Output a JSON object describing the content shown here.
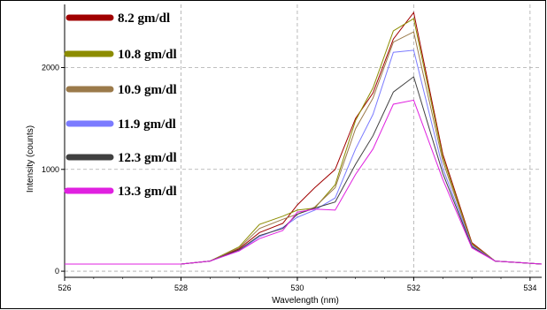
{
  "chart_data": {
    "type": "line",
    "xlabel": "Wavelength (nm)",
    "ylabel": "Intensity (counts)",
    "xlim": [
      526,
      534.2
    ],
    "ylim": [
      -60,
      2620
    ],
    "x_ticks": [
      526,
      528,
      530,
      532,
      534
    ],
    "y_ticks": [
      0,
      1000,
      2000
    ],
    "grid": true,
    "legend_position": "top-left",
    "x": [
      526,
      527,
      528,
      528.5,
      529,
      529.35,
      529.75,
      530,
      530.3,
      530.65,
      531,
      531.3,
      531.65,
      532,
      532.5,
      533,
      533.4,
      533.8,
      534.2
    ],
    "series": [
      {
        "name": "8.2 gm/dl",
        "color": "#a00000",
        "values": [
          70,
          70,
          70,
          100,
          220,
          380,
          470,
          650,
          820,
          1000,
          1500,
          1750,
          2280,
          2540,
          1150,
          280,
          100,
          85,
          70
        ]
      },
      {
        "name": "10.8 gm/dl",
        "color": "#8c8c00",
        "values": [
          70,
          70,
          70,
          100,
          240,
          460,
          540,
          600,
          620,
          850,
          1480,
          1800,
          2360,
          2480,
          1120,
          270,
          100,
          85,
          70
        ]
      },
      {
        "name": "10.9 gm/dl",
        "color": "#9b7a4a",
        "values": [
          70,
          70,
          70,
          100,
          230,
          420,
          510,
          560,
          630,
          820,
          1400,
          1700,
          2250,
          2350,
          1080,
          260,
          100,
          85,
          70
        ]
      },
      {
        "name": "11.9 gm/dl",
        "color": "#7b7bff",
        "values": [
          70,
          70,
          70,
          100,
          200,
          340,
          430,
          530,
          600,
          720,
          1200,
          1540,
          2150,
          2170,
          1010,
          250,
          100,
          85,
          70
        ]
      },
      {
        "name": "12.3 gm/dl",
        "color": "#404040",
        "values": [
          70,
          70,
          70,
          100,
          210,
          350,
          420,
          560,
          620,
          680,
          1050,
          1330,
          1760,
          1910,
          960,
          240,
          100,
          85,
          70
        ]
      },
      {
        "name": "13.3 gm/dl",
        "color": "#e020e0",
        "values": [
          70,
          70,
          70,
          100,
          200,
          320,
          400,
          580,
          610,
          600,
          950,
          1200,
          1640,
          1680,
          900,
          230,
          100,
          85,
          70
        ]
      }
    ]
  }
}
